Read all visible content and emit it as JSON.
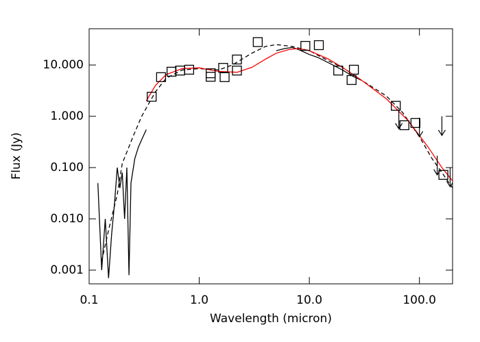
{
  "chart_data": {
    "type": "scatter",
    "xlabel": "Wavelength (micron)",
    "ylabel": "Flux (Jy)",
    "xscale": "log",
    "yscale": "log",
    "xlim": [
      0.1,
      200
    ],
    "ylim": [
      0.00054,
      51
    ],
    "xticks": [
      0.1,
      {
        "value": 1,
        "label": "1.0"
      },
      {
        "value": 10,
        "label": "10.0"
      },
      {
        "value": 100,
        "label": "100.0"
      }
    ],
    "yticks": [
      {
        "value": 0.001,
        "label": "0.001"
      },
      {
        "value": 0.01,
        "label": "0.010"
      },
      {
        "value": 0.1,
        "label": "0.100"
      },
      {
        "value": 1,
        "label": "1.000"
      },
      {
        "value": 10,
        "label": "10.000"
      }
    ],
    "series": [
      {
        "style": "dashed",
        "color": "#000000",
        "x": [
          0.13,
          0.15,
          0.18,
          0.2,
          0.25,
          0.3,
          0.4,
          0.5,
          0.7,
          1.0,
          1.5,
          2,
          3,
          4,
          5,
          7,
          10,
          15,
          20,
          30,
          50,
          70,
          100,
          130,
          160,
          200
        ],
        "values": [
          0.0015,
          0.006,
          0.03,
          0.12,
          0.4,
          1.0,
          3,
          5.5,
          8,
          8.5,
          8,
          10,
          17,
          23,
          25,
          23,
          19,
          12,
          9,
          5,
          2.5,
          1.2,
          0.4,
          0.15,
          0.08,
          0.04
        ]
      },
      {
        "style": "line",
        "color": "#000000",
        "x": [
          0.12,
          0.13,
          0.14,
          0.15,
          0.16,
          0.17,
          0.18,
          0.19,
          0.2,
          0.21,
          0.22,
          0.23,
          0.24,
          0.26,
          0.28,
          0.3,
          0.33,
          null,
          5,
          6,
          7,
          8,
          10,
          12,
          15,
          20,
          25,
          30
        ],
        "values": [
          0.05,
          0.001,
          0.01,
          0.0007,
          0.005,
          0.02,
          0.1,
          0.04,
          0.08,
          0.01,
          0.1,
          0.0008,
          0.05,
          0.15,
          0.25,
          0.35,
          0.55,
          null,
          19,
          21,
          22,
          20,
          16,
          14,
          11,
          8,
          6,
          5
        ]
      },
      {
        "style": "line",
        "color": "#ff0000",
        "x": [
          0.33,
          0.4,
          0.5,
          0.7,
          1.0,
          1.5,
          2.2,
          3,
          4,
          5,
          6.5,
          8,
          10,
          15,
          20,
          30,
          50,
          80,
          120,
          160,
          200
        ],
        "values": [
          2.0,
          4,
          6.5,
          8.5,
          8.8,
          7.5,
          7.2,
          9,
          13,
          17,
          20,
          21,
          19,
          13,
          9,
          5,
          2.2,
          0.8,
          0.25,
          0.1,
          0.055
        ]
      },
      {
        "style": "square",
        "color": "#000000",
        "x": [
          0.37,
          0.45,
          0.56,
          0.67,
          0.81,
          1.27,
          1.27,
          1.65,
          1.7,
          2.2,
          2.2,
          3.4,
          9.2,
          12.2,
          18.3,
          24.2,
          25.4,
          61,
          73,
          92,
          165
        ],
        "values": [
          2.4,
          5.8,
          7.4,
          7.8,
          8.1,
          6.9,
          5.9,
          8.8,
          5.8,
          7.8,
          12.8,
          28,
          23.6,
          24.4,
          7.8,
          5.1,
          8.1,
          1.6,
          0.67,
          0.74,
          0.072
        ]
      },
      {
        "style": "arrow",
        "color": "#000000",
        "x": [
          65,
          100,
          145,
          160,
          190
        ],
        "values": [
          1.35,
          0.94,
          0.17,
          1.0,
          0.1
        ]
      }
    ]
  }
}
